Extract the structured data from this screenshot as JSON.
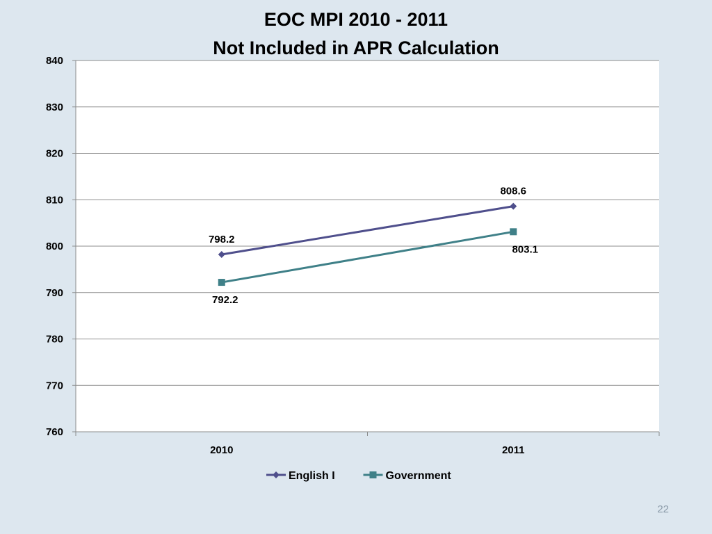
{
  "chart_data": {
    "type": "line",
    "title": "EOC MPI 2010 - 2011",
    "subtitle": "Not Included in APR Calculation",
    "categories": [
      "2010",
      "2011"
    ],
    "series": [
      {
        "name": "English I",
        "values": [
          798.2,
          808.6
        ],
        "color": "#4f4f8c",
        "marker": "diamond"
      },
      {
        "name": "Government",
        "values": [
          792.2,
          803.1
        ],
        "color": "#3f8088",
        "marker": "square"
      }
    ],
    "ylim": [
      760,
      840
    ],
    "yticks": [
      760,
      770,
      780,
      790,
      800,
      810,
      820,
      830,
      840
    ],
    "grid": true,
    "legend": "bottom",
    "xlabel": "",
    "ylabel": ""
  },
  "page_number": "22"
}
